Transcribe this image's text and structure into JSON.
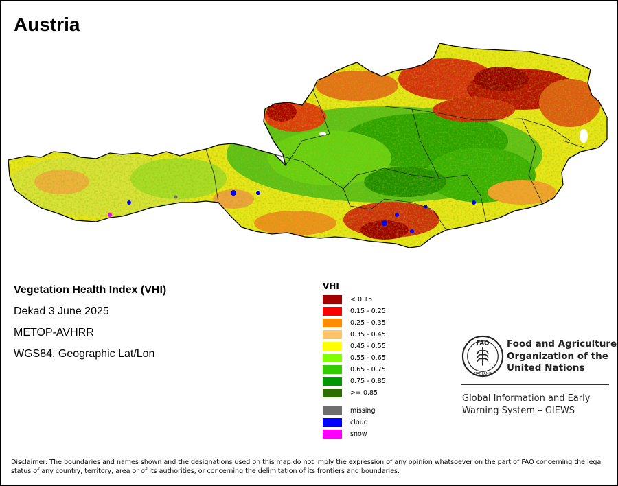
{
  "map": {
    "title": "Austria",
    "info": {
      "product": "Vegetation Health Index (VHI)",
      "period": "Dekad 3 June 2025",
      "sensor": "METOP-AVHRR",
      "projection": "WGS84, Geographic Lat/Lon"
    },
    "legend": {
      "title": "VHI",
      "classes": [
        {
          "label": "< 0.15",
          "color": "#a50000"
        },
        {
          "label": "0.15 - 0.25",
          "color": "#ff0000"
        },
        {
          "label": "0.25 - 0.35",
          "color": "#ff8c00"
        },
        {
          "label": "0.35 - 0.45",
          "color": "#fcc56c"
        },
        {
          "label": "0.45 - 0.55",
          "color": "#ffff00"
        },
        {
          "label": "0.55 - 0.65",
          "color": "#80ff00"
        },
        {
          "label": "0.65 - 0.75",
          "color": "#33cc00"
        },
        {
          "label": "0.75 - 0.85",
          "color": "#009900"
        },
        {
          "label": ">= 0.85",
          "color": "#2d6e00"
        }
      ],
      "extra": [
        {
          "label": "missing",
          "color": "#6e6e6e"
        },
        {
          "label": "cloud",
          "color": "#0000ff"
        },
        {
          "label": "snow",
          "color": "#ff00ff"
        }
      ]
    }
  },
  "organization": {
    "name_lines": [
      "Food and Agriculture",
      "Organization of the",
      "United Nations"
    ],
    "logo_letters": "FAO",
    "logo_motto": "FIAT PANIS",
    "system_lines": [
      "Global Information and Early",
      "Warning System – GIEWS"
    ]
  },
  "disclaimer": "Disclaimer: The boundaries and names shown and the designations used on this map do not imply the expression of any opinion whatsoever on the part of FAO concerning the legal status of any country, territory, area or of its authorities, or concerning the delimitation of its frontiers and boundaries."
}
